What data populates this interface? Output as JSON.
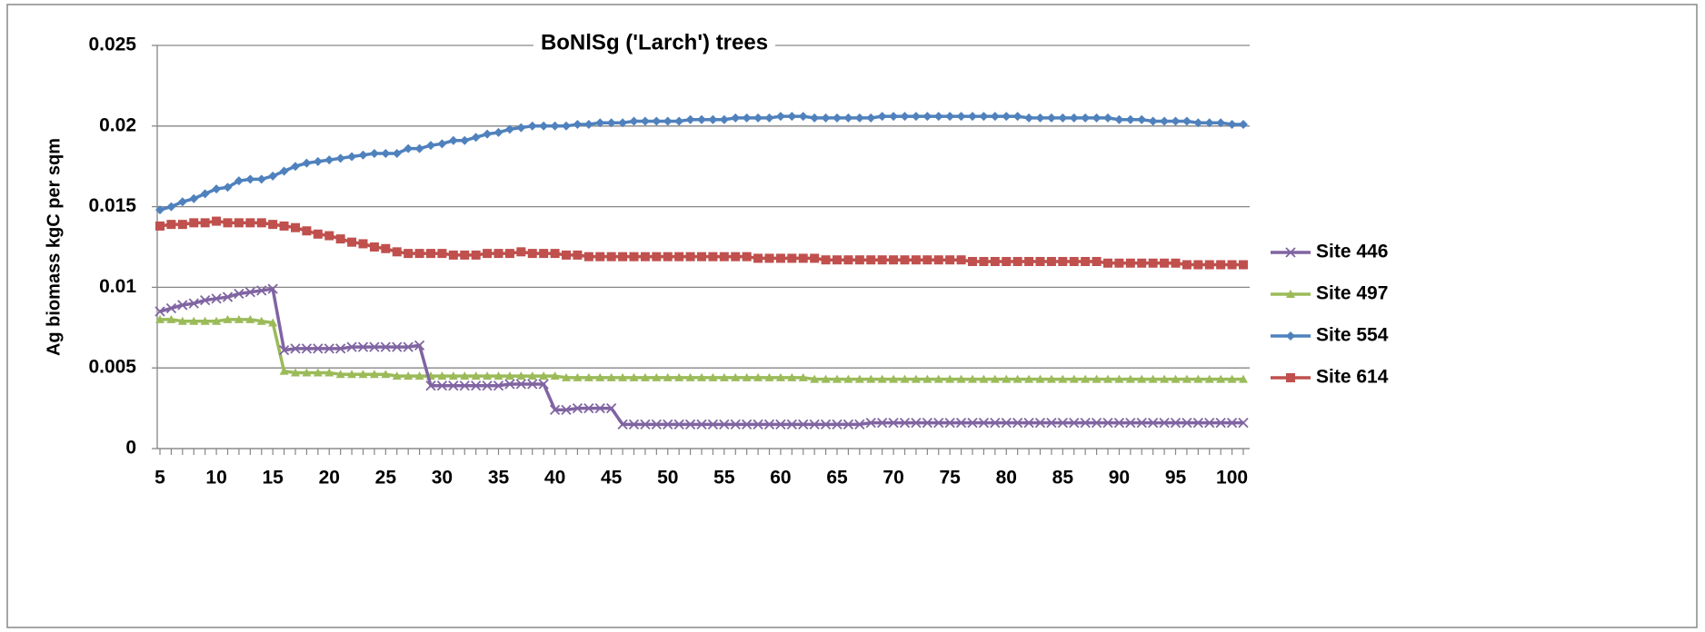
{
  "chart_data": {
    "type": "line",
    "title": "BoNlSg ('Larch') trees",
    "y_label": "Ag biomass kgC per sqm",
    "x": [
      5,
      6,
      7,
      8,
      9,
      10,
      11,
      12,
      13,
      14,
      15,
      16,
      17,
      18,
      19,
      20,
      21,
      22,
      23,
      24,
      25,
      26,
      27,
      28,
      29,
      30,
      31,
      32,
      33,
      34,
      35,
      36,
      37,
      38,
      39,
      40,
      41,
      42,
      43,
      44,
      45,
      46,
      47,
      48,
      49,
      50,
      51,
      52,
      53,
      54,
      55,
      56,
      57,
      58,
      59,
      60,
      61,
      62,
      63,
      64,
      65,
      66,
      67,
      68,
      69,
      70,
      71,
      72,
      73,
      74,
      75,
      76,
      77,
      78,
      79,
      80,
      81,
      82,
      83,
      84,
      85,
      86,
      87,
      88,
      89,
      90,
      91,
      92,
      93,
      94,
      95,
      96,
      97,
      98,
      99,
      100,
      101
    ],
    "xlim": [
      5,
      101
    ],
    "xticks": [
      5,
      10,
      15,
      20,
      25,
      30,
      35,
      40,
      45,
      50,
      55,
      60,
      65,
      70,
      75,
      80,
      85,
      90,
      95,
      100
    ],
    "ylim": [
      0,
      0.025
    ],
    "yticks": [
      0,
      0.005,
      0.01,
      0.015,
      0.02,
      0.025
    ],
    "grid": true,
    "legend": "right",
    "series": [
      {
        "name": "Site 446",
        "color": "#8064a2",
        "marker": "x",
        "values": [
          0.0085,
          0.0087,
          0.0089,
          0.009,
          0.0092,
          0.0093,
          0.0094,
          0.0096,
          0.0097,
          0.0098,
          0.0099,
          0.0061,
          0.0062,
          0.0062,
          0.0062,
          0.0062,
          0.0062,
          0.0063,
          0.0063,
          0.0063,
          0.0063,
          0.0063,
          0.0063,
          0.0064,
          0.0039,
          0.0039,
          0.0039,
          0.0039,
          0.0039,
          0.0039,
          0.0039,
          0.004,
          0.004,
          0.004,
          0.004,
          0.0024,
          0.0024,
          0.0025,
          0.0025,
          0.0025,
          0.0025,
          0.0015,
          0.0015,
          0.0015,
          0.0015,
          0.0015,
          0.0015,
          0.0015,
          0.0015,
          0.0015,
          0.0015,
          0.0015,
          0.0015,
          0.0015,
          0.0015,
          0.0015,
          0.0015,
          0.0015,
          0.0015,
          0.0015,
          0.0015,
          0.0015,
          0.0015,
          0.0016,
          0.0016,
          0.0016,
          0.0016,
          0.0016,
          0.0016,
          0.0016,
          0.0016,
          0.0016,
          0.0016,
          0.0016,
          0.0016,
          0.0016,
          0.0016,
          0.0016,
          0.0016,
          0.0016,
          0.0016,
          0.0016,
          0.0016,
          0.0016,
          0.0016,
          0.0016,
          0.0016,
          0.0016,
          0.0016,
          0.0016,
          0.0016,
          0.0016,
          0.0016,
          0.0016,
          0.0016,
          0.0016,
          0.0016
        ]
      },
      {
        "name": "Site 497",
        "color": "#9bbb59",
        "marker": "triangle",
        "values": [
          0.008,
          0.008,
          0.0079,
          0.0079,
          0.0079,
          0.0079,
          0.008,
          0.008,
          0.008,
          0.0079,
          0.0078,
          0.0048,
          0.0047,
          0.0047,
          0.0047,
          0.0047,
          0.0046,
          0.0046,
          0.0046,
          0.0046,
          0.0046,
          0.0045,
          0.0045,
          0.0045,
          0.0045,
          0.0045,
          0.0045,
          0.0045,
          0.0045,
          0.0045,
          0.0045,
          0.0045,
          0.0045,
          0.0045,
          0.0045,
          0.0045,
          0.0044,
          0.0044,
          0.0044,
          0.0044,
          0.0044,
          0.0044,
          0.0044,
          0.0044,
          0.0044,
          0.0044,
          0.0044,
          0.0044,
          0.0044,
          0.0044,
          0.0044,
          0.0044,
          0.0044,
          0.0044,
          0.0044,
          0.0044,
          0.0044,
          0.0044,
          0.0043,
          0.0043,
          0.0043,
          0.0043,
          0.0043,
          0.0043,
          0.0043,
          0.0043,
          0.0043,
          0.0043,
          0.0043,
          0.0043,
          0.0043,
          0.0043,
          0.0043,
          0.0043,
          0.0043,
          0.0043,
          0.0043,
          0.0043,
          0.0043,
          0.0043,
          0.0043,
          0.0043,
          0.0043,
          0.0043,
          0.0043,
          0.0043,
          0.0043,
          0.0043,
          0.0043,
          0.0043,
          0.0043,
          0.0043,
          0.0043,
          0.0043,
          0.0043,
          0.0043,
          0.0043
        ]
      },
      {
        "name": "Site 554",
        "color": "#4f81bd",
        "marker": "diamond",
        "values": [
          0.0148,
          0.015,
          0.0153,
          0.0155,
          0.0158,
          0.0161,
          0.0162,
          0.0166,
          0.0167,
          0.0167,
          0.0169,
          0.0172,
          0.0175,
          0.0177,
          0.0178,
          0.0179,
          0.018,
          0.0181,
          0.0182,
          0.0183,
          0.0183,
          0.0183,
          0.0186,
          0.0186,
          0.0188,
          0.0189,
          0.0191,
          0.0191,
          0.0193,
          0.0195,
          0.0196,
          0.0198,
          0.0199,
          0.02,
          0.02,
          0.02,
          0.02,
          0.0201,
          0.0201,
          0.0202,
          0.0202,
          0.0202,
          0.0203,
          0.0203,
          0.0203,
          0.0203,
          0.0203,
          0.0204,
          0.0204,
          0.0204,
          0.0204,
          0.0205,
          0.0205,
          0.0205,
          0.0205,
          0.0206,
          0.0206,
          0.0206,
          0.0205,
          0.0205,
          0.0205,
          0.0205,
          0.0205,
          0.0205,
          0.0206,
          0.0206,
          0.0206,
          0.0206,
          0.0206,
          0.0206,
          0.0206,
          0.0206,
          0.0206,
          0.0206,
          0.0206,
          0.0206,
          0.0206,
          0.0205,
          0.0205,
          0.0205,
          0.0205,
          0.0205,
          0.0205,
          0.0205,
          0.0205,
          0.0204,
          0.0204,
          0.0204,
          0.0203,
          0.0203,
          0.0203,
          0.0203,
          0.0202,
          0.0202,
          0.0202,
          0.0201,
          0.0201
        ]
      },
      {
        "name": "Site 614",
        "color": "#c0504d",
        "marker": "square",
        "values": [
          0.0138,
          0.0139,
          0.0139,
          0.014,
          0.014,
          0.0141,
          0.014,
          0.014,
          0.014,
          0.014,
          0.0139,
          0.0138,
          0.0137,
          0.0135,
          0.0133,
          0.0132,
          0.013,
          0.0128,
          0.0127,
          0.0125,
          0.0124,
          0.0122,
          0.0121,
          0.0121,
          0.0121,
          0.0121,
          0.012,
          0.012,
          0.012,
          0.0121,
          0.0121,
          0.0121,
          0.0122,
          0.0121,
          0.0121,
          0.0121,
          0.012,
          0.012,
          0.0119,
          0.0119,
          0.0119,
          0.0119,
          0.0119,
          0.0119,
          0.0119,
          0.0119,
          0.0119,
          0.0119,
          0.0119,
          0.0119,
          0.0119,
          0.0119,
          0.0119,
          0.0118,
          0.0118,
          0.0118,
          0.0118,
          0.0118,
          0.0118,
          0.0117,
          0.0117,
          0.0117,
          0.0117,
          0.0117,
          0.0117,
          0.0117,
          0.0117,
          0.0117,
          0.0117,
          0.0117,
          0.0117,
          0.0117,
          0.0116,
          0.0116,
          0.0116,
          0.0116,
          0.0116,
          0.0116,
          0.0116,
          0.0116,
          0.0116,
          0.0116,
          0.0116,
          0.0116,
          0.0115,
          0.0115,
          0.0115,
          0.0115,
          0.0115,
          0.0115,
          0.0115,
          0.0114,
          0.0114,
          0.0114,
          0.0114,
          0.0114,
          0.0114
        ]
      }
    ]
  }
}
